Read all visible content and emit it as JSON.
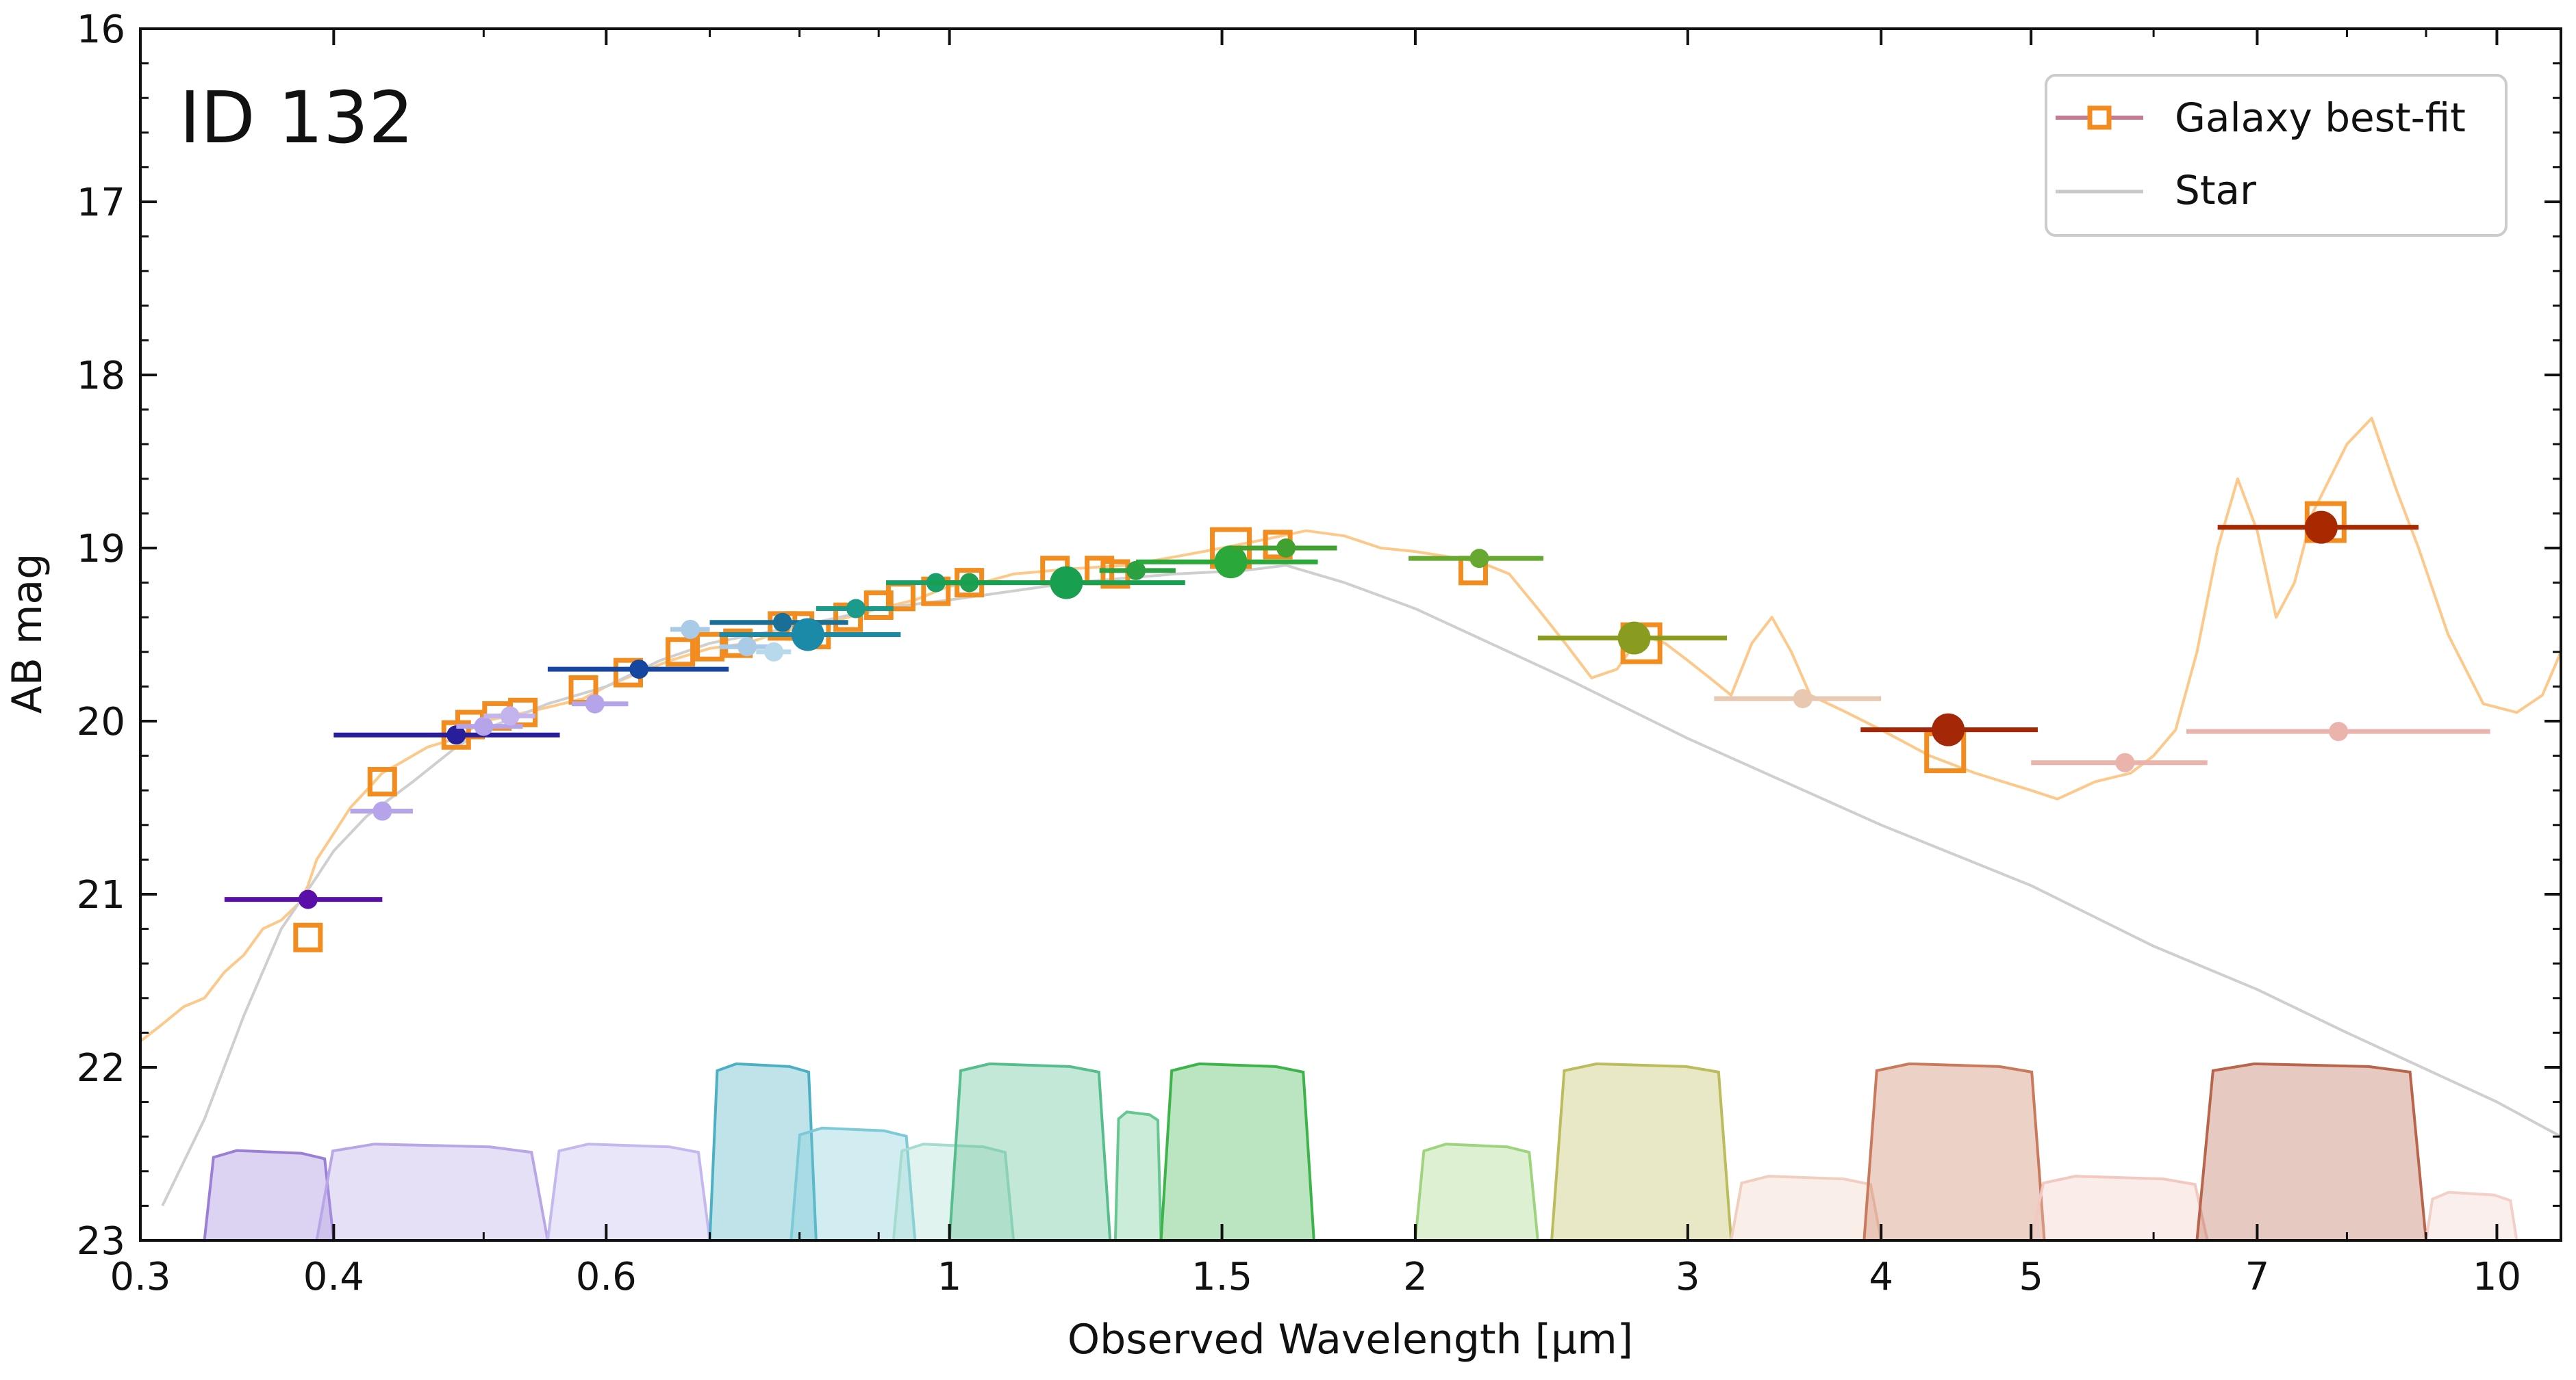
{
  "chart_data": {
    "type": "scatter",
    "title": "ID 132",
    "xlabel": "Observed Wavelength [μm]",
    "ylabel": "AB mag",
    "x_scale": "log",
    "xlim": [
      0.3,
      11.0
    ],
    "ylim": [
      23,
      16
    ],
    "y_inverted": true,
    "x_ticks": [
      0.3,
      0.4,
      0.6,
      1,
      1.5,
      2,
      3,
      4,
      5,
      7,
      10
    ],
    "x_tick_labels": [
      "0.3",
      "0.4",
      "0.6",
      "1",
      "1.5",
      "2",
      "3",
      "4",
      "5",
      "7",
      "10"
    ],
    "y_ticks": [
      16,
      17,
      18,
      19,
      20,
      21,
      22,
      23
    ],
    "y_tick_labels": [
      "16",
      "17",
      "18",
      "19",
      "20",
      "21",
      "22",
      "23"
    ],
    "legend": {
      "placement": "top-right",
      "entries": [
        {
          "label": "Galaxy best-fit",
          "color": "#c97a90",
          "marker_color": "#f28c1e"
        },
        {
          "label": "Star",
          "color": "#c8c8c8"
        }
      ]
    },
    "series": [
      {
        "name": "Galaxy best-fit",
        "kind": "line",
        "color": "#fdc98a",
        "points": [
          [
            0.3,
            21.85
          ],
          [
            0.31,
            21.75
          ],
          [
            0.32,
            21.65
          ],
          [
            0.33,
            21.6
          ],
          [
            0.34,
            21.45
          ],
          [
            0.35,
            21.35
          ],
          [
            0.36,
            21.2
          ],
          [
            0.37,
            21.15
          ],
          [
            0.38,
            21.05
          ],
          [
            0.385,
            20.95
          ],
          [
            0.39,
            20.8
          ],
          [
            0.4,
            20.65
          ],
          [
            0.41,
            20.5
          ],
          [
            0.42,
            20.4
          ],
          [
            0.43,
            20.3
          ],
          [
            0.44,
            20.25
          ],
          [
            0.46,
            20.15
          ],
          [
            0.48,
            20.1
          ],
          [
            0.5,
            20.0
          ],
          [
            0.52,
            19.97
          ],
          [
            0.55,
            19.92
          ],
          [
            0.58,
            19.87
          ],
          [
            0.6,
            19.8
          ],
          [
            0.63,
            19.72
          ],
          [
            0.66,
            19.65
          ],
          [
            0.7,
            19.58
          ],
          [
            0.74,
            19.55
          ],
          [
            0.78,
            19.48
          ],
          [
            0.82,
            19.45
          ],
          [
            0.86,
            19.4
          ],
          [
            0.9,
            19.35
          ],
          [
            0.95,
            19.3
          ],
          [
            1.0,
            19.22
          ],
          [
            1.05,
            19.2
          ],
          [
            1.1,
            19.15
          ],
          [
            1.2,
            19.12
          ],
          [
            1.3,
            19.1
          ],
          [
            1.4,
            19.05
          ],
          [
            1.5,
            19.0
          ],
          [
            1.6,
            18.95
          ],
          [
            1.7,
            18.9
          ],
          [
            1.8,
            18.93
          ],
          [
            1.9,
            19.0
          ],
          [
            2.0,
            19.02
          ],
          [
            2.1,
            19.05
          ],
          [
            2.2,
            19.08
          ],
          [
            2.3,
            19.15
          ],
          [
            2.4,
            19.35
          ],
          [
            2.5,
            19.55
          ],
          [
            2.6,
            19.75
          ],
          [
            2.7,
            19.7
          ],
          [
            2.8,
            19.5
          ],
          [
            2.9,
            19.55
          ],
          [
            3.0,
            19.65
          ],
          [
            3.1,
            19.75
          ],
          [
            3.2,
            19.85
          ],
          [
            3.3,
            19.55
          ],
          [
            3.4,
            19.4
          ],
          [
            3.5,
            19.6
          ],
          [
            3.6,
            19.85
          ],
          [
            3.8,
            19.95
          ],
          [
            4.0,
            20.05
          ],
          [
            4.3,
            20.2
          ],
          [
            4.6,
            20.3
          ],
          [
            5.0,
            20.4
          ],
          [
            5.2,
            20.45
          ],
          [
            5.5,
            20.35
          ],
          [
            5.8,
            20.3
          ],
          [
            6.0,
            20.2
          ],
          [
            6.2,
            20.05
          ],
          [
            6.4,
            19.6
          ],
          [
            6.6,
            19.0
          ],
          [
            6.8,
            18.6
          ],
          [
            7.0,
            18.9
          ],
          [
            7.2,
            19.4
          ],
          [
            7.4,
            19.2
          ],
          [
            7.6,
            18.8
          ],
          [
            8.0,
            18.4
          ],
          [
            8.3,
            18.25
          ],
          [
            8.6,
            18.65
          ],
          [
            8.9,
            19.0
          ],
          [
            9.3,
            19.5
          ],
          [
            9.8,
            19.9
          ],
          [
            10.3,
            19.95
          ],
          [
            10.7,
            19.85
          ],
          [
            11.0,
            19.6
          ]
        ]
      },
      {
        "name": "Star",
        "kind": "line",
        "color": "#cfcfcf",
        "points": [
          [
            0.31,
            22.8
          ],
          [
            0.33,
            22.3
          ],
          [
            0.35,
            21.7
          ],
          [
            0.37,
            21.2
          ],
          [
            0.39,
            20.9
          ],
          [
            0.4,
            20.75
          ],
          [
            0.42,
            20.55
          ],
          [
            0.45,
            20.35
          ],
          [
            0.48,
            20.15
          ],
          [
            0.5,
            20.05
          ],
          [
            0.55,
            19.9
          ],
          [
            0.6,
            19.8
          ],
          [
            0.65,
            19.65
          ],
          [
            0.7,
            19.55
          ],
          [
            0.8,
            19.45
          ],
          [
            0.9,
            19.35
          ],
          [
            1.0,
            19.3
          ],
          [
            1.2,
            19.2
          ],
          [
            1.4,
            19.15
          ],
          [
            1.55,
            19.13
          ],
          [
            1.65,
            19.1
          ],
          [
            1.8,
            19.2
          ],
          [
            2.0,
            19.35
          ],
          [
            2.5,
            19.75
          ],
          [
            3.0,
            20.1
          ],
          [
            4.0,
            20.6
          ],
          [
            5.0,
            20.95
          ],
          [
            6.0,
            21.3
          ],
          [
            7.0,
            21.55
          ],
          [
            8.0,
            21.8
          ],
          [
            10.0,
            22.2
          ],
          [
            11.0,
            22.4
          ]
        ]
      },
      {
        "name": "Galaxy model photometry",
        "kind": "markers",
        "marker": "open-square",
        "color": "#f28c1e",
        "points": [
          [
            0.385,
            21.25
          ],
          [
            0.43,
            20.35
          ],
          [
            0.48,
            20.08
          ],
          [
            0.49,
            20.02
          ],
          [
            0.51,
            19.97
          ],
          [
            0.53,
            19.95
          ],
          [
            0.58,
            19.82
          ],
          [
            0.62,
            19.72
          ],
          [
            0.67,
            19.6
          ],
          [
            0.7,
            19.57
          ],
          [
            0.73,
            19.55
          ],
          [
            0.78,
            19.45
          ],
          [
            0.8,
            19.45
          ],
          [
            0.82,
            19.5
          ],
          [
            0.86,
            19.4
          ],
          [
            0.9,
            19.33
          ],
          [
            0.93,
            19.28
          ],
          [
            0.98,
            19.25
          ],
          [
            1.03,
            19.2
          ],
          [
            1.17,
            19.13
          ],
          [
            1.25,
            19.13
          ],
          [
            1.28,
            19.15
          ],
          [
            1.52,
            19.0
          ],
          [
            1.63,
            18.98
          ],
          [
            2.18,
            19.13
          ],
          [
            2.8,
            19.55
          ],
          [
            4.4,
            20.18
          ],
          [
            7.75,
            18.85
          ]
        ]
      },
      {
        "name": "Observed photometry",
        "kind": "points-with-xerr",
        "points": [
          {
            "x": 0.385,
            "y": 21.03,
            "xmin": 0.34,
            "xmax": 0.43,
            "color": "#5a0fa8",
            "size": "small"
          },
          {
            "x": 0.43,
            "y": 20.52,
            "xmin": 0.41,
            "xmax": 0.45,
            "color": "#b6a4ea",
            "size": "small"
          },
          {
            "x": 0.48,
            "y": 20.08,
            "xmin": 0.4,
            "xmax": 0.56,
            "color": "#281e9a",
            "size": "small"
          },
          {
            "x": 0.5,
            "y": 20.03,
            "xmin": 0.48,
            "xmax": 0.53,
            "color": "#b6a4ea",
            "size": "small"
          },
          {
            "x": 0.52,
            "y": 19.97,
            "xmin": 0.5,
            "xmax": 0.54,
            "color": "#c4b4ee",
            "size": "small"
          },
          {
            "x": 0.59,
            "y": 19.9,
            "xmin": 0.57,
            "xmax": 0.62,
            "color": "#b6a4ea",
            "size": "small"
          },
          {
            "x": 0.63,
            "y": 19.7,
            "xmin": 0.55,
            "xmax": 0.72,
            "color": "#1546a0",
            "size": "small"
          },
          {
            "x": 0.68,
            "y": 19.47,
            "xmin": 0.66,
            "xmax": 0.7,
            "color": "#aacbe8",
            "size": "small"
          },
          {
            "x": 0.74,
            "y": 19.57,
            "xmin": 0.71,
            "xmax": 0.77,
            "color": "#aacbe8",
            "size": "small"
          },
          {
            "x": 0.77,
            "y": 19.6,
            "xmin": 0.75,
            "xmax": 0.79,
            "color": "#b8d8ec",
            "size": "small"
          },
          {
            "x": 0.78,
            "y": 19.43,
            "xmin": 0.7,
            "xmax": 0.86,
            "color": "#1a6f96",
            "size": "small"
          },
          {
            "x": 0.81,
            "y": 19.5,
            "xmin": 0.71,
            "xmax": 0.93,
            "color": "#1b8aa8",
            "size": "large"
          },
          {
            "x": 0.87,
            "y": 19.35,
            "xmin": 0.82,
            "xmax": 0.92,
            "color": "#1b9b8c",
            "size": "small"
          },
          {
            "x": 0.98,
            "y": 19.2,
            "xmin": 0.91,
            "xmax": 1.04,
            "color": "#19a06a",
            "size": "small"
          },
          {
            "x": 1.03,
            "y": 19.2,
            "xmin": 0.99,
            "xmax": 1.08,
            "color": "#20a050",
            "size": "small"
          },
          {
            "x": 1.19,
            "y": 19.2,
            "xmin": 0.97,
            "xmax": 1.42,
            "color": "#18a050",
            "size": "large"
          },
          {
            "x": 1.32,
            "y": 19.13,
            "xmin": 1.25,
            "xmax": 1.4,
            "color": "#2aa040",
            "size": "small"
          },
          {
            "x": 1.52,
            "y": 19.08,
            "xmin": 1.32,
            "xmax": 1.73,
            "color": "#2aa83a",
            "size": "large"
          },
          {
            "x": 1.65,
            "y": 19.0,
            "xmin": 1.52,
            "xmax": 1.78,
            "color": "#40a030",
            "size": "small"
          },
          {
            "x": 2.2,
            "y": 19.06,
            "xmin": 1.98,
            "xmax": 2.42,
            "color": "#66a830",
            "size": "small"
          },
          {
            "x": 2.77,
            "y": 19.52,
            "xmin": 2.4,
            "xmax": 3.18,
            "color": "#8a9c20",
            "size": "large"
          },
          {
            "x": 3.56,
            "y": 19.87,
            "xmin": 3.12,
            "xmax": 4.0,
            "color": "#e8c8b0",
            "size": "small"
          },
          {
            "x": 4.42,
            "y": 20.05,
            "xmin": 3.88,
            "xmax": 5.05,
            "color": "#a42808",
            "size": "large"
          },
          {
            "x": 5.75,
            "y": 20.24,
            "xmin": 5.0,
            "xmax": 6.5,
            "color": "#eab4ac",
            "size": "small"
          },
          {
            "x": 7.7,
            "y": 18.88,
            "xmin": 6.6,
            "xmax": 8.9,
            "color": "#a82800",
            "size": "large"
          },
          {
            "x": 7.9,
            "y": 20.06,
            "xmin": 6.3,
            "xmax": 9.9,
            "color": "#eab4ac",
            "size": "small"
          }
        ]
      }
    ],
    "filter_curves": [
      {
        "min": 0.33,
        "max": 0.4,
        "level": 0.28,
        "color": "#9b7fd6"
      },
      {
        "min": 0.39,
        "max": 0.55,
        "level": 0.3,
        "color": "#b8a6e6"
      },
      {
        "min": 0.55,
        "max": 0.7,
        "level": 0.3,
        "color": "#c4b8ee"
      },
      {
        "min": 0.7,
        "max": 0.82,
        "level": 0.55,
        "color": "#4bb0c4"
      },
      {
        "min": 0.79,
        "max": 0.95,
        "level": 0.35,
        "color": "#7ccad6"
      },
      {
        "min": 0.92,
        "max": 1.1,
        "level": 0.3,
        "color": "#a6dcd0"
      },
      {
        "min": 1.0,
        "max": 1.27,
        "level": 0.55,
        "color": "#56be8c"
      },
      {
        "min": 1.28,
        "max": 1.37,
        "level": 0.4,
        "color": "#66c890"
      },
      {
        "min": 1.37,
        "max": 1.72,
        "level": 0.55,
        "color": "#3cb44a"
      },
      {
        "min": 2.0,
        "max": 2.4,
        "level": 0.3,
        "color": "#9ed47e"
      },
      {
        "min": 2.45,
        "max": 3.2,
        "level": 0.55,
        "color": "#bdbc5c"
      },
      {
        "min": 3.2,
        "max": 4.0,
        "level": 0.2,
        "color": "#f0cfc0"
      },
      {
        "min": 3.9,
        "max": 5.1,
        "level": 0.55,
        "color": "#c97a5c"
      },
      {
        "min": 5.0,
        "max": 6.5,
        "level": 0.2,
        "color": "#f2c8c0"
      },
      {
        "min": 6.4,
        "max": 9.0,
        "level": 0.55,
        "color": "#b8654c"
      },
      {
        "min": 9.0,
        "max": 10.3,
        "level": 0.15,
        "color": "#f2d0c8"
      }
    ]
  }
}
